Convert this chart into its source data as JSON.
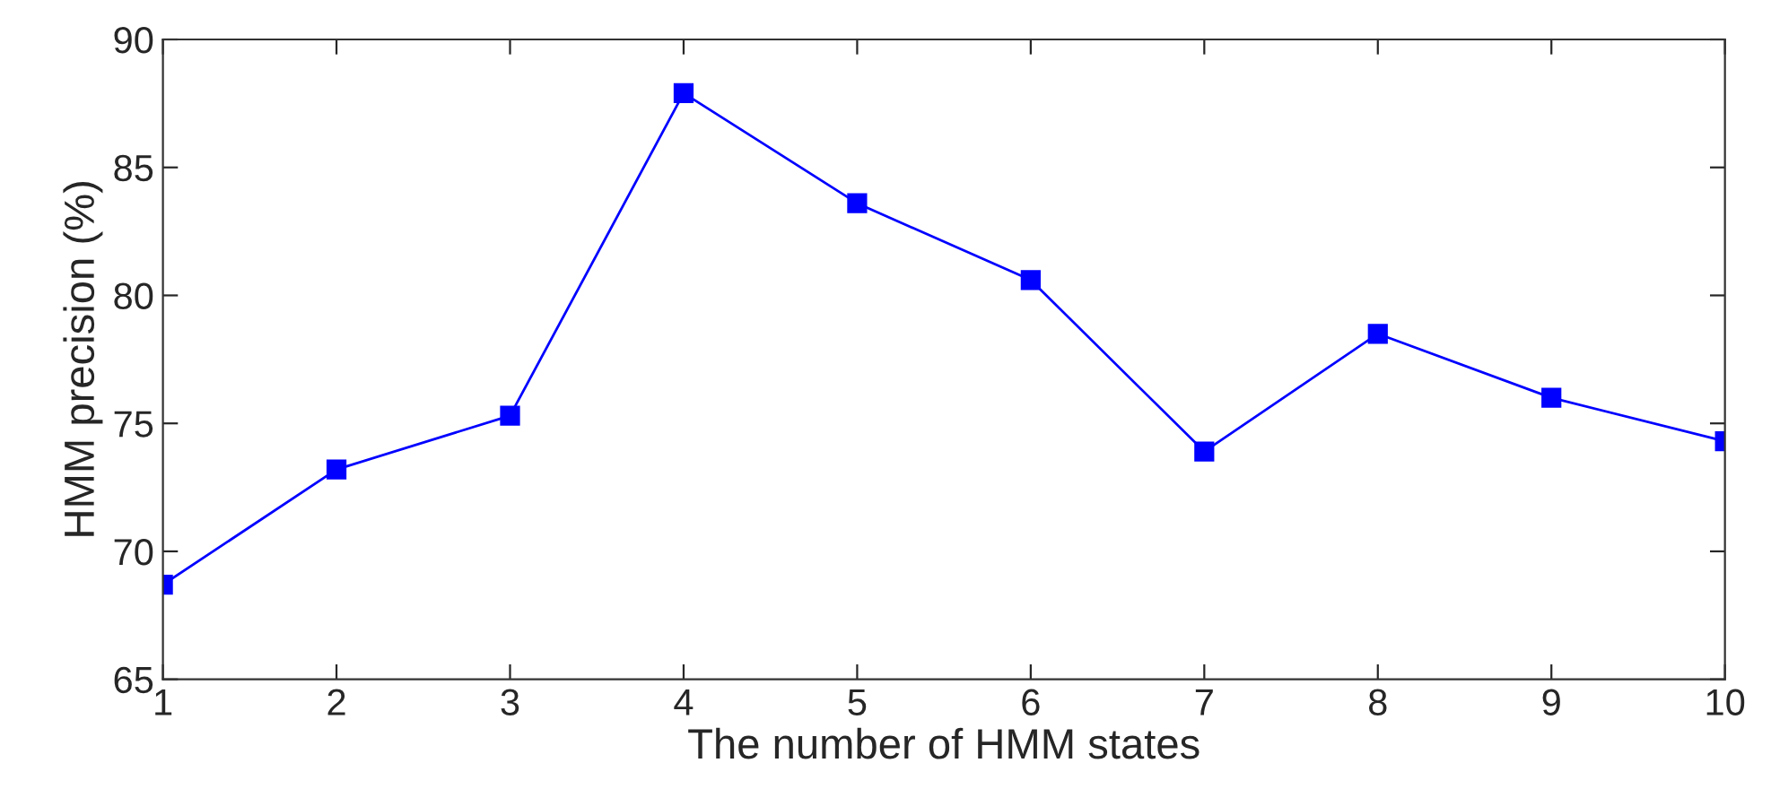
{
  "chart_data": {
    "type": "line",
    "xlabel": "The number of HMM states",
    "ylabel": "HMM precision (%)",
    "x": [
      1,
      2,
      3,
      4,
      5,
      6,
      7,
      8,
      9,
      10
    ],
    "series": [
      {
        "color": "#0000ff",
        "values": [
          68.7,
          73.2,
          75.3,
          87.9,
          83.6,
          80.6,
          73.9,
          78.5,
          76.0,
          74.3
        ]
      }
    ],
    "xlim": [
      1,
      10
    ],
    "xticks": [
      1,
      2,
      3,
      4,
      5,
      6,
      7,
      8,
      9,
      10
    ],
    "ylim": [
      65,
      90
    ],
    "yticks": [
      65,
      70,
      75,
      80,
      85,
      90
    ],
    "grid": false,
    "legend": false,
    "marker": "square",
    "line_style": "solid"
  }
}
